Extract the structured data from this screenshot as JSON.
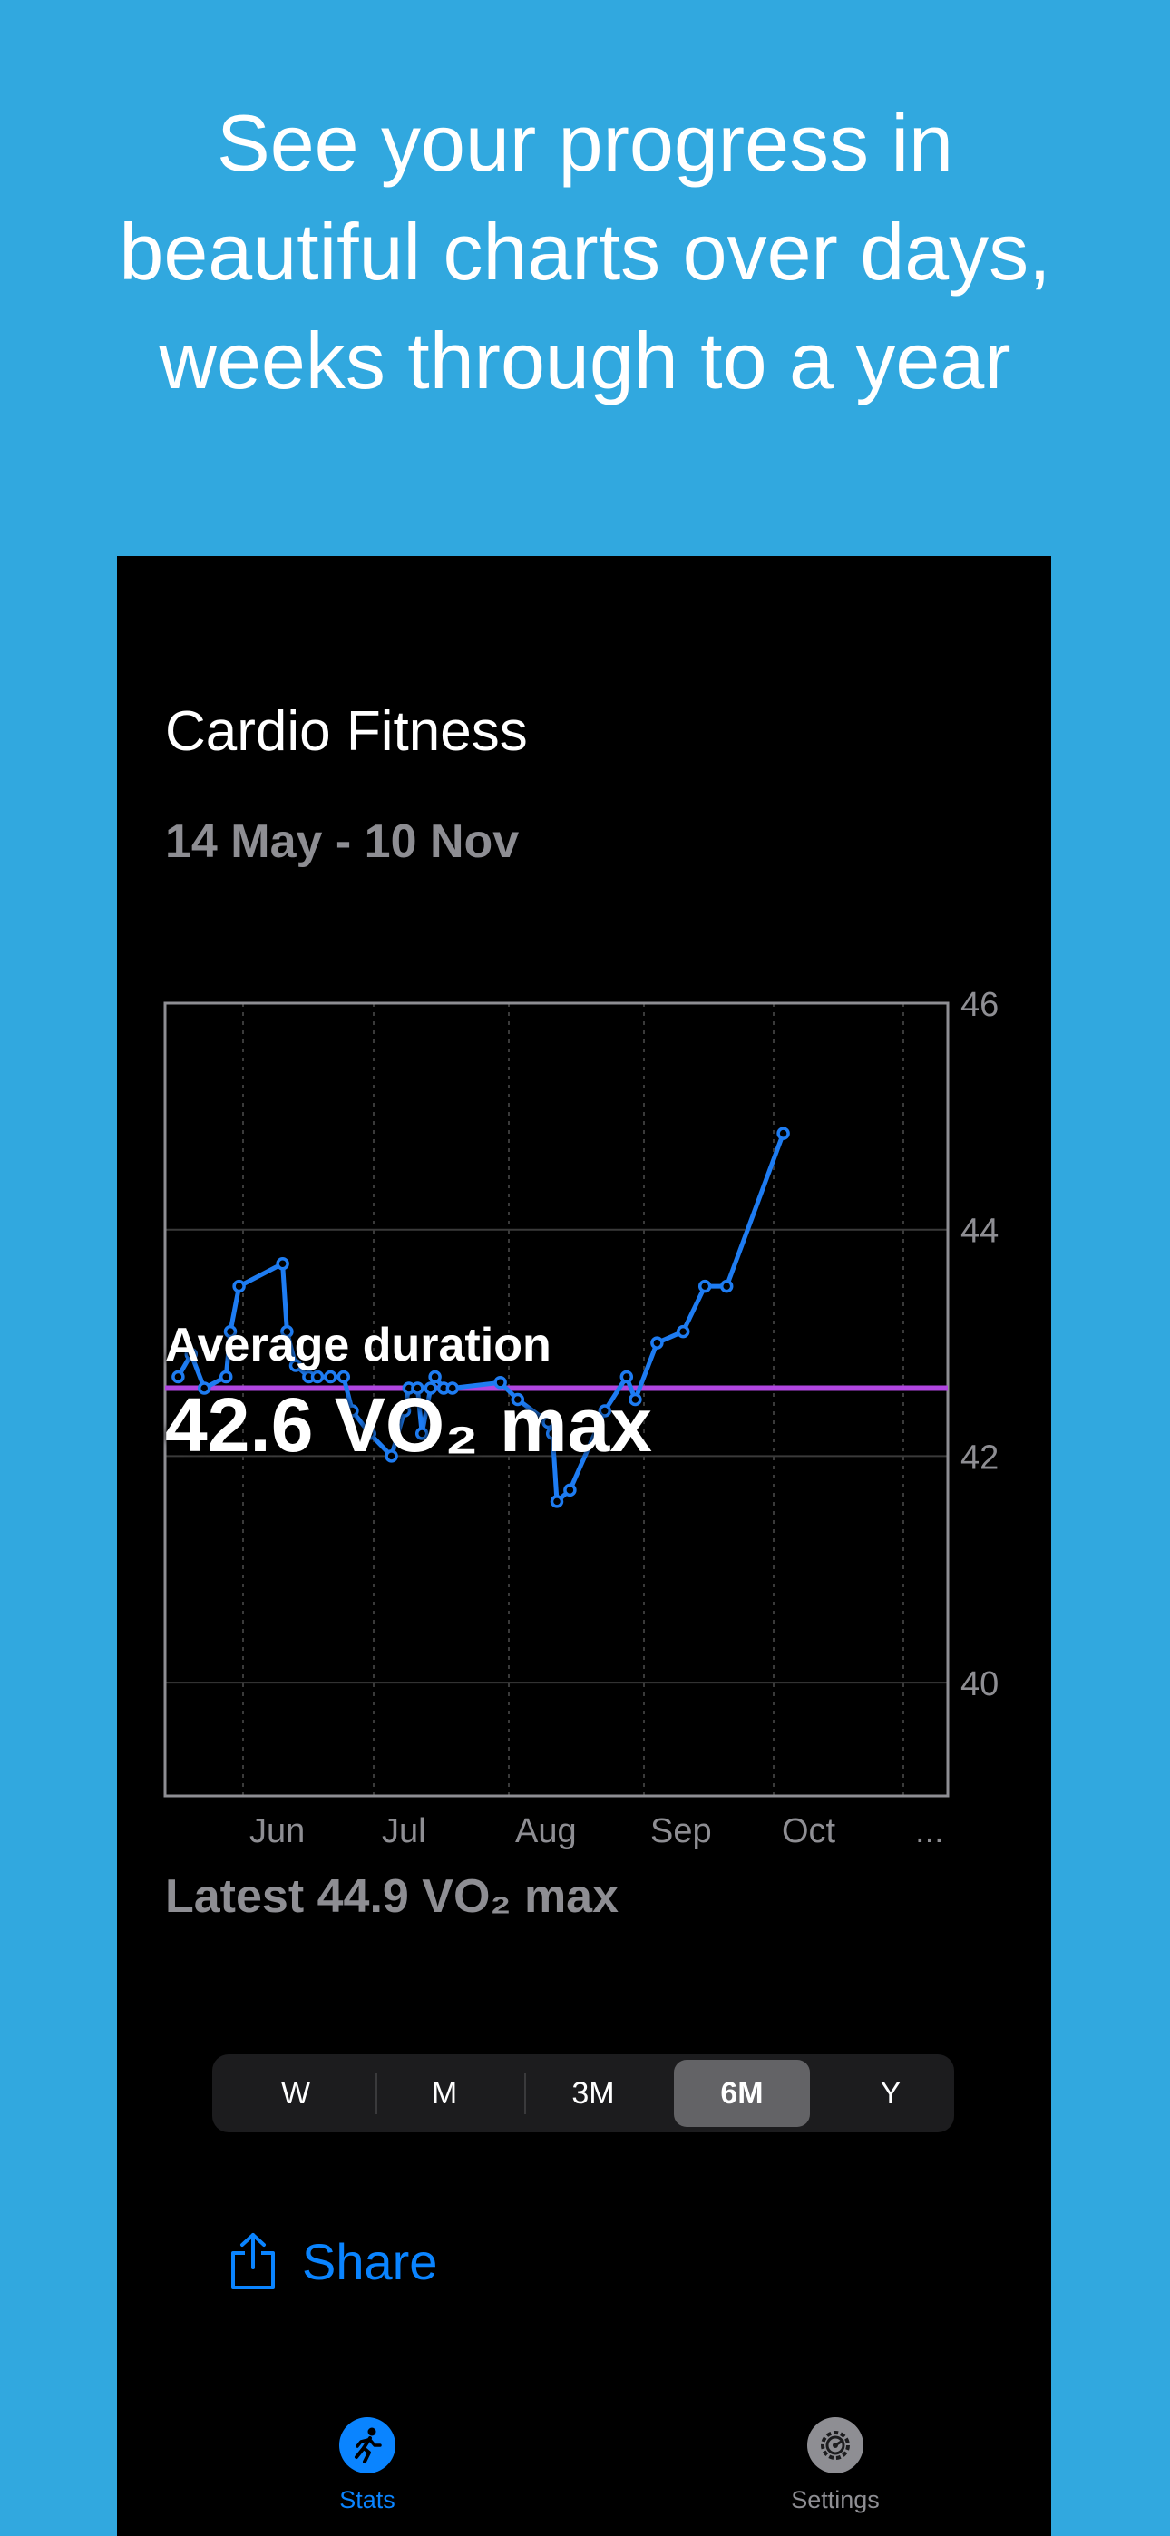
{
  "headline": {
    "line1": "See your progress in",
    "line2": "beautiful charts over days,",
    "line3": "weeks through to a year"
  },
  "screen": {
    "title": "Cardio Fitness",
    "date_range": "14 May - 10 Nov",
    "average_label": "Average duration",
    "average_value": "42.6 VO₂ max",
    "latest": "Latest 44.9 VO₂ max"
  },
  "chart_data": {
    "type": "line",
    "xlabel": "",
    "ylabel": "",
    "x_ticks": [
      "Jun",
      "Jul",
      "Aug",
      "Sep",
      "Oct",
      "..."
    ],
    "y_ticks": [
      "46",
      "44",
      "42",
      "40"
    ],
    "ylim": [
      39,
      46
    ],
    "axis_position": "right",
    "grid": true,
    "average_line": 42.6,
    "colors": {
      "series": "#1e7cf2",
      "average": "#b046e0",
      "grid": "#3a3a3a",
      "frame": "#8e8e93"
    },
    "series": [
      {
        "x": [
          "2024-05-14",
          "2024-05-17",
          "2024-05-20",
          "2024-05-25",
          "2024-05-26",
          "2024-05-28",
          "2024-06-07",
          "2024-06-08",
          "2024-06-10",
          "2024-06-13",
          "2024-06-15",
          "2024-06-18",
          "2024-06-21",
          "2024-06-23",
          "2024-06-27",
          "2024-07-02",
          "2024-07-05",
          "2024-07-06",
          "2024-07-08",
          "2024-07-09",
          "2024-07-11",
          "2024-07-12",
          "2024-07-14",
          "2024-07-16",
          "2024-07-27",
          "2024-07-31",
          "2024-08-07",
          "2024-08-08",
          "2024-08-09",
          "2024-08-12",
          "2024-08-20",
          "2024-08-25",
          "2024-08-27",
          "2024-09-01",
          "2024-09-07",
          "2024-09-12",
          "2024-09-17",
          "2024-09-30"
        ],
        "y": [
          42.7,
          42.9,
          42.6,
          42.7,
          43.1,
          43.5,
          43.7,
          43.1,
          42.8,
          42.7,
          42.7,
          42.7,
          42.7,
          42.4,
          42.2,
          42.0,
          42.4,
          42.6,
          42.6,
          42.2,
          42.6,
          42.7,
          42.6,
          42.6,
          42.65,
          42.5,
          42.3,
          42.2,
          41.6,
          41.7,
          42.4,
          42.7,
          42.5,
          43.0,
          43.1,
          43.5,
          43.5,
          44.85
        ]
      }
    ]
  },
  "segmented_control": {
    "options": [
      "W",
      "M",
      "3M",
      "6M",
      "Y"
    ],
    "selected": "6M"
  },
  "share": {
    "label": "Share",
    "icon": "share-icon"
  },
  "tab_bar": {
    "stats_label": "Stats",
    "stats_icon": "running-figure-icon",
    "settings_label": "Settings",
    "settings_icon": "gear-icon"
  }
}
